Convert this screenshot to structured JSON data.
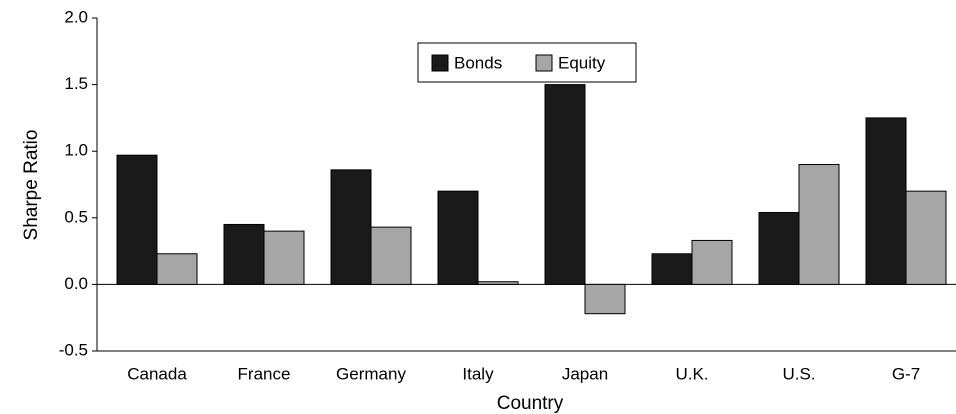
{
  "chart_data": {
    "type": "bar",
    "x_label": "Country",
    "y_label": "Sharpe Ratio",
    "categories": [
      "Canada",
      "France",
      "Germany",
      "Italy",
      "Japan",
      "U.K.",
      "U.S.",
      "G-7"
    ],
    "series": [
      {
        "name": "Bonds",
        "color": "#1a1a1a",
        "values": [
          0.97,
          0.45,
          0.86,
          0.7,
          1.5,
          0.23,
          0.54,
          1.25
        ]
      },
      {
        "name": "Equity",
        "color": "#a6a6a6",
        "values": [
          0.23,
          0.4,
          0.43,
          0.02,
          -0.22,
          0.33,
          0.9,
          0.7
        ]
      }
    ],
    "ylim": [
      -0.5,
      2.0
    ],
    "yticks": [
      -0.5,
      {
        "value": 0,
        "label": "0.0"
      },
      0.5,
      {
        "value": 1,
        "label": "1.0"
      },
      1.5,
      {
        "value": 2,
        "label": "2.0"
      }
    ],
    "legend": "top-center"
  }
}
